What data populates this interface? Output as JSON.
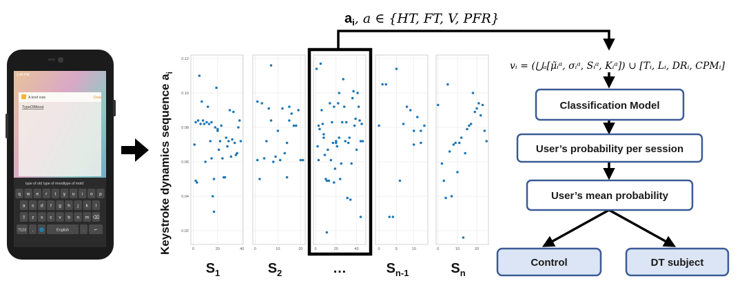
{
  "phone": {
    "status_time": "1:46 PM",
    "notification_title": "A brief note",
    "notification_action": "Done",
    "note_text": "TypeOfMood",
    "suggestions": [
      "type of old",
      "type of mood",
      "type of mold"
    ],
    "keyboard_rows": [
      [
        "q",
        "w",
        "e",
        "r",
        "t",
        "y",
        "u",
        "i",
        "o",
        "p"
      ],
      [
        "a",
        "s",
        "d",
        "f",
        "g",
        "h",
        "j",
        "k",
        "l"
      ],
      [
        "⇧",
        "z",
        "x",
        "c",
        "v",
        "b",
        "n",
        "m",
        "⌫"
      ]
    ],
    "bottom_row": {
      "symbols": "?123",
      "comma": ",",
      "space": "English",
      "period": ".",
      "enter": "↵"
    }
  },
  "y_axis_label": "Keystroke dynamics sequence a",
  "y_axis_label_sub": "i",
  "formula_top": {
    "bold": "a",
    "bold_sub": "i",
    "rest": ",  a ∈ {HT, FT, V, PFR}"
  },
  "formula_side": "vᵢ = (⋃ₐ[μ̃ᵢᵃ, σᵢᵃ, Sᵢᵃ, Kᵢᵃ]) ∪ [Tᵢ, Lᵢ, DRᵢ, CPMᵢ]",
  "flow": {
    "model": "Classification Model",
    "session": "User’s probability per session",
    "mean": "User’s mean probability",
    "control": "Control",
    "subject": "DT subject"
  },
  "colors": {
    "point": "#1f77b4",
    "box_border": "#3a5a95",
    "outcome_fill": "#dbe5f5",
    "arrow": "#000000"
  },
  "chart_data": [
    {
      "type": "scatter",
      "xlabel_main": "S",
      "xlabel_sub": "1",
      "yticks": [
        "0.12",
        "0.10",
        "0.08",
        "0.06",
        "0.04",
        "0.02"
      ],
      "ylim": [
        0.012,
        0.122
      ],
      "xticks": [
        "0",
        "20",
        "40"
      ],
      "xlim": [
        -2,
        41
      ],
      "points": [
        [
          1,
          0.07
        ],
        [
          2,
          0.083
        ],
        [
          2,
          0.049
        ],
        [
          3,
          0.048
        ],
        [
          4,
          0.084
        ],
        [
          5,
          0.11
        ],
        [
          6,
          0.082
        ],
        [
          7,
          0.095
        ],
        [
          8,
          0.084
        ],
        [
          9,
          0.082
        ],
        [
          10,
          0.06
        ],
        [
          11,
          0.083
        ],
        [
          12,
          0.092
        ],
        [
          13,
          0.082
        ],
        [
          14,
          0.072
        ],
        [
          15,
          0.083
        ],
        [
          15,
          0.062
        ],
        [
          16,
          0.04
        ],
        [
          17,
          0.05
        ],
        [
          17,
          0.031
        ],
        [
          18,
          0.08
        ],
        [
          19,
          0.103
        ],
        [
          20,
          0.078
        ],
        [
          20,
          0.079
        ],
        [
          21,
          0.067
        ],
        [
          22,
          0.072
        ],
        [
          23,
          0.081
        ],
        [
          24,
          0.062
        ],
        [
          25,
          0.051
        ],
        [
          26,
          0.051
        ],
        [
          27,
          0.074
        ],
        [
          28,
          0.069
        ],
        [
          29,
          0.072
        ],
        [
          30,
          0.09
        ],
        [
          31,
          0.063
        ],
        [
          32,
          0.073
        ],
        [
          33,
          0.089
        ],
        [
          34,
          0.071
        ],
        [
          35,
          0.064
        ],
        [
          36,
          0.065
        ],
        [
          37,
          0.08
        ],
        [
          38,
          0.084
        ],
        [
          39,
          0.072
        ]
      ]
    },
    {
      "type": "scatter",
      "xlabel_main": "S",
      "xlabel_sub": "2",
      "yticks": [],
      "ylim": [
        0.012,
        0.122
      ],
      "xticks": [
        "0",
        "10",
        "20"
      ],
      "xlim": [
        -1,
        22
      ],
      "points": [
        [
          1,
          0.095
        ],
        [
          1,
          0.061
        ],
        [
          2,
          0.05
        ],
        [
          3,
          0.094
        ],
        [
          4,
          0.062
        ],
        [
          5,
          0.072
        ],
        [
          6,
          0.091
        ],
        [
          7,
          0.116
        ],
        [
          7,
          0.084
        ],
        [
          8,
          0.06
        ],
        [
          9,
          0.063
        ],
        [
          10,
          0.078
        ],
        [
          11,
          0.061
        ],
        [
          12,
          0.091
        ],
        [
          13,
          0.065
        ],
        [
          14,
          0.051
        ],
        [
          14,
          0.071
        ],
        [
          15,
          0.084
        ],
        [
          15,
          0.092
        ],
        [
          16,
          0.088
        ],
        [
          17,
          0.081
        ],
        [
          18,
          0.081
        ],
        [
          19,
          0.09
        ],
        [
          20,
          0.061
        ],
        [
          21,
          0.061
        ]
      ]
    },
    {
      "type": "scatter",
      "xlabel_main": "…",
      "xlabel_sub": "",
      "yticks": [],
      "ylim": [
        0.012,
        0.122
      ],
      "xticks": [
        "0",
        "20",
        "40"
      ],
      "xlim": [
        -2,
        49
      ],
      "points": [
        [
          1,
          0.114
        ],
        [
          2,
          0.069
        ],
        [
          3,
          0.081
        ],
        [
          3,
          0.061
        ],
        [
          4,
          0.079
        ],
        [
          5,
          0.117
        ],
        [
          6,
          0.09
        ],
        [
          7,
          0.082
        ],
        [
          8,
          0.074
        ],
        [
          8,
          0.076
        ],
        [
          9,
          0.064
        ],
        [
          10,
          0.05
        ],
        [
          11,
          0.049
        ],
        [
          11,
          0.019
        ],
        [
          12,
          0.067
        ],
        [
          13,
          0.049
        ],
        [
          14,
          0.094
        ],
        [
          15,
          0.061
        ],
        [
          16,
          0.083
        ],
        [
          17,
          0.071
        ],
        [
          18,
          0.048
        ],
        [
          18,
          0.092
        ],
        [
          19,
          0.056
        ],
        [
          20,
          0.071
        ],
        [
          20,
          0.072
        ],
        [
          21,
          0.069
        ],
        [
          22,
          0.094
        ],
        [
          23,
          0.074
        ],
        [
          23,
          0.1
        ],
        [
          24,
          0.05
        ],
        [
          25,
          0.059
        ],
        [
          26,
          0.083
        ],
        [
          27,
          0.108
        ],
        [
          28,
          0.092
        ],
        [
          29,
          0.072
        ],
        [
          30,
          0.083
        ],
        [
          31,
          0.039
        ],
        [
          32,
          0.071
        ],
        [
          33,
          0.074
        ],
        [
          34,
          0.038
        ],
        [
          35,
          0.059
        ],
        [
          36,
          0.097
        ],
        [
          37,
          0.101
        ],
        [
          38,
          0.081
        ],
        [
          39,
          0.085
        ],
        [
          40,
          0.067
        ],
        [
          41,
          0.1
        ],
        [
          42,
          0.092
        ],
        [
          43,
          0.084
        ],
        [
          44,
          0.072
        ],
        [
          44,
          0.028
        ],
        [
          45,
          0.082
        ],
        [
          46,
          0.072
        ]
      ]
    },
    {
      "type": "scatter",
      "xlabel_main": "S",
      "xlabel_sub": "n-1",
      "yticks": [],
      "ylim": [
        0.012,
        0.122
      ],
      "xticks": [
        "0",
        "5",
        "10"
      ],
      "xlim": [
        -1,
        14
      ],
      "points": [
        [
          0,
          0.081
        ],
        [
          1,
          0.105
        ],
        [
          2,
          0.105
        ],
        [
          3,
          0.028
        ],
        [
          4,
          0.028
        ],
        [
          5,
          0.114
        ],
        [
          6,
          0.049
        ],
        [
          7,
          0.082
        ],
        [
          8,
          0.092
        ],
        [
          9,
          0.09
        ],
        [
          10,
          0.07
        ],
        [
          10,
          0.078
        ],
        [
          11,
          0.086
        ],
        [
          12,
          0.071
        ],
        [
          12,
          0.078
        ],
        [
          13,
          0.081
        ]
      ]
    },
    {
      "type": "scatter",
      "xlabel_main": "S",
      "xlabel_sub": "n",
      "yticks": [],
      "ylim": [
        0.012,
        0.122
      ],
      "xticks": [
        "0",
        "10",
        "20"
      ],
      "xlim": [
        -1,
        26
      ],
      "points": [
        [
          0,
          0.093
        ],
        [
          2,
          0.059
        ],
        [
          3,
          0.049
        ],
        [
          4,
          0.039
        ],
        [
          5,
          0.105
        ],
        [
          6,
          0.066
        ],
        [
          7,
          0.04
        ],
        [
          8,
          0.07
        ],
        [
          9,
          0.071
        ],
        [
          10,
          0.054
        ],
        [
          11,
          0.071
        ],
        [
          12,
          0.074
        ],
        [
          13,
          0.016
        ],
        [
          14,
          0.065
        ],
        [
          15,
          0.079
        ],
        [
          16,
          0.081
        ],
        [
          17,
          0.082
        ],
        [
          18,
          0.1
        ],
        [
          19,
          0.089
        ],
        [
          20,
          0.091
        ],
        [
          21,
          0.094
        ],
        [
          22,
          0.087
        ],
        [
          23,
          0.093
        ],
        [
          24,
          0.078
        ],
        [
          25,
          0.072
        ]
      ]
    }
  ]
}
